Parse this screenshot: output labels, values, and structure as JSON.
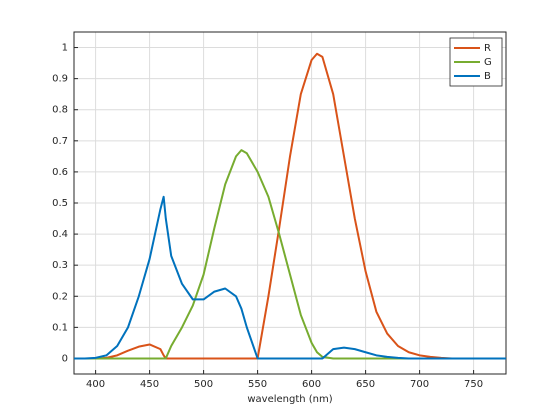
{
  "chart_data": {
    "type": "line",
    "xlabel": "wavelength (nm)",
    "x": [
      380,
      390,
      400,
      410,
      420,
      430,
      440,
      450,
      460,
      463,
      465,
      470,
      480,
      490,
      500,
      510,
      520,
      530,
      535,
      540,
      550,
      560,
      570,
      580,
      590,
      600,
      605,
      610,
      620,
      630,
      640,
      650,
      660,
      670,
      680,
      690,
      700,
      710,
      720,
      730,
      740,
      750,
      760,
      770,
      780
    ],
    "series": [
      {
        "name": "R",
        "color": "#d95319",
        "values": [
          0,
          0,
          0,
          0.002,
          0.01,
          0.025,
          0.038,
          0.045,
          0.03,
          0.01,
          0,
          0,
          0,
          0,
          0,
          0,
          0,
          0,
          0,
          0,
          0,
          0.2,
          0.42,
          0.65,
          0.85,
          0.96,
          0.98,
          0.97,
          0.85,
          0.65,
          0.45,
          0.28,
          0.15,
          0.08,
          0.04,
          0.02,
          0.01,
          0.005,
          0.002,
          0,
          0,
          0,
          0,
          0,
          0
        ]
      },
      {
        "name": "G",
        "color": "#77ac30",
        "values": [
          0,
          0,
          0,
          0,
          0,
          0,
          0,
          0,
          0,
          0,
          0,
          0.04,
          0.1,
          0.17,
          0.27,
          0.42,
          0.56,
          0.65,
          0.67,
          0.66,
          0.6,
          0.52,
          0.4,
          0.27,
          0.14,
          0.05,
          0.02,
          0.005,
          0,
          0,
          0,
          0,
          0,
          0,
          0,
          0,
          0,
          0,
          0,
          0,
          0,
          0,
          0,
          0,
          0
        ]
      },
      {
        "name": "B",
        "color": "#0072bd",
        "values": [
          0,
          0,
          0.002,
          0.01,
          0.04,
          0.1,
          0.2,
          0.32,
          0.48,
          0.52,
          0.45,
          0.33,
          0.24,
          0.19,
          0.19,
          0.215,
          0.225,
          0.2,
          0.16,
          0.1,
          0,
          0,
          0,
          0,
          0,
          0,
          0,
          0,
          0.03,
          0.035,
          0.03,
          0.02,
          0.01,
          0.005,
          0.002,
          0,
          0,
          0,
          0,
          0,
          0,
          0,
          0,
          0,
          0
        ]
      }
    ],
    "xlim": [
      380,
      780
    ],
    "ylim": [
      -0.05,
      1.05
    ],
    "xticks": [
      400,
      450,
      500,
      550,
      600,
      650,
      700,
      750
    ],
    "yticks": [
      0,
      0.1,
      0.2,
      0.3,
      0.4,
      0.5,
      0.6,
      0.7,
      0.8,
      0.9,
      1
    ],
    "grid": true,
    "legend": "top-right"
  }
}
